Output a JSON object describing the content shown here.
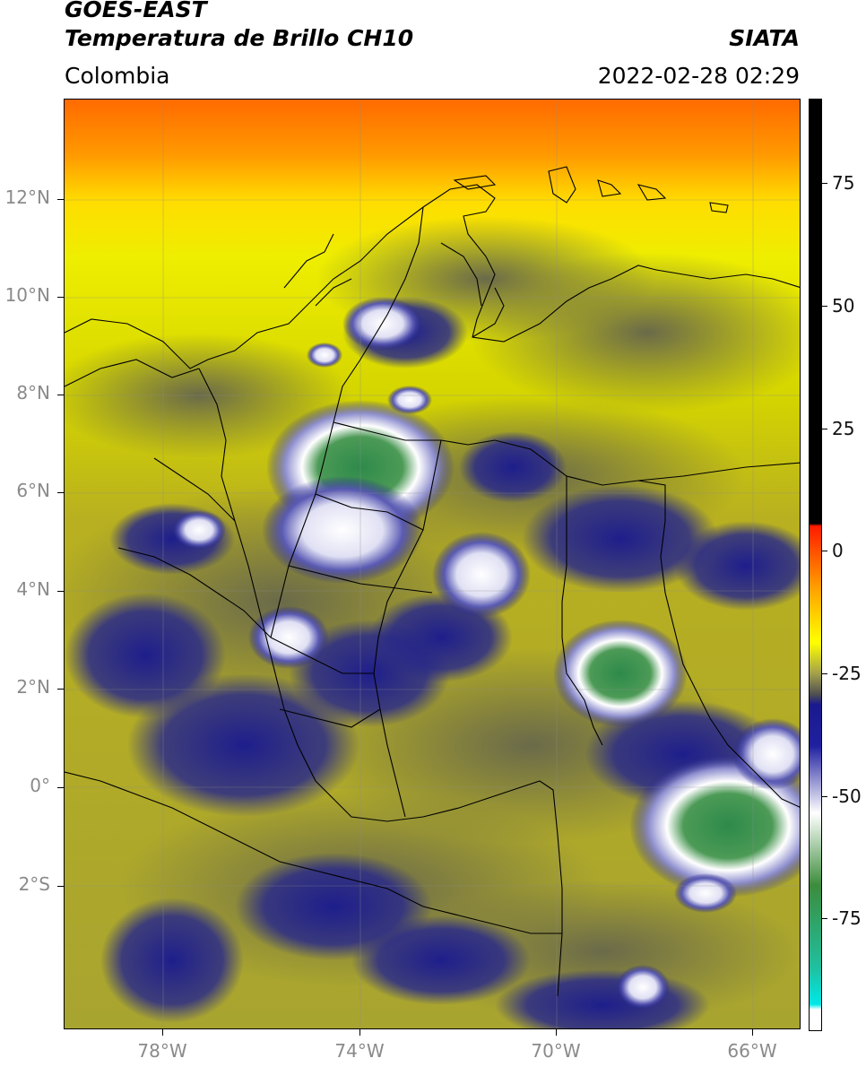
{
  "header": {
    "satellite": "GOES-EAST",
    "product": "Temperatura de Brillo CH10",
    "agency": "SIATA",
    "region": "Colombia",
    "timestamp": "2022-02-28 02:29"
  },
  "map": {
    "lat_labels": [
      "12°N",
      "10°N",
      "8°N",
      "6°N",
      "4°N",
      "2°N",
      "0°",
      "2°S"
    ],
    "lon_labels": [
      "78°W",
      "74°W",
      "70°W",
      "66°W"
    ],
    "lat_range": [
      -4.9,
      14.0
    ],
    "lon_range": [
      -80.0,
      -65.0
    ]
  },
  "colorbar": {
    "labels": [
      "75",
      "50",
      "25",
      "0",
      "-25",
      "-50",
      "-75"
    ],
    "range": [
      -90,
      90
    ],
    "stops": [
      {
        "v": 90,
        "c": "#000000"
      },
      {
        "v": 8,
        "c": "#000000"
      },
      {
        "v": 7.5,
        "c": "#ff1a00"
      },
      {
        "v": -5,
        "c": "#ffa500"
      },
      {
        "v": -15,
        "c": "#ffff00"
      },
      {
        "v": -21,
        "c": "#a3a04c"
      },
      {
        "v": -25,
        "c": "#505050"
      },
      {
        "v": -27,
        "c": "#1a1a8c"
      },
      {
        "v": -35,
        "c": "#2020a0"
      },
      {
        "v": -48,
        "c": "#ffffff"
      },
      {
        "v": -62,
        "c": "#3c8c3c"
      },
      {
        "v": -78,
        "c": "#20c0a0"
      },
      {
        "v": -85,
        "c": "#00e8e8"
      },
      {
        "v": -86,
        "c": "#ffffff"
      },
      {
        "v": -90,
        "c": "#ffffff"
      }
    ]
  }
}
